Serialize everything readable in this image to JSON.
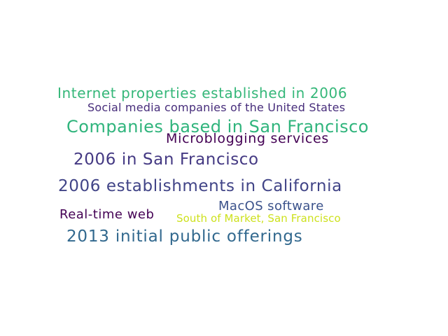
{
  "words": [
    {
      "text": "Internet properties established in 2006",
      "color": "#35b779"
    },
    {
      "text": "Social media companies of the United States",
      "color": "#472d7b"
    },
    {
      "text": "Companies based in San Francisco",
      "color": "#2fb47c"
    },
    {
      "text": "Microblogging services",
      "color": "#440154"
    },
    {
      "text": "2006 in San Francisco",
      "color": "#443983"
    },
    {
      "text": "2006 establishments in California",
      "color": "#414487"
    },
    {
      "text": "MacOS software",
      "color": "#3b528b"
    },
    {
      "text": "Real-time web",
      "color": "#440154"
    },
    {
      "text": "South of Market, San Francisco",
      "color": "#cde11d"
    },
    {
      "text": "2013 initial public offerings",
      "color": "#31688e"
    }
  ]
}
